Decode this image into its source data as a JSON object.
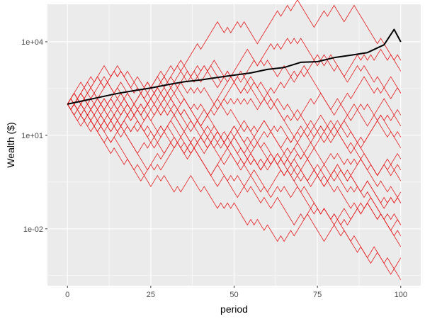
{
  "chart_data": {
    "type": "line",
    "title": "",
    "xlabel": "period",
    "ylabel": "Wealth ($)",
    "log_y": true,
    "xlim": [
      -6,
      106
    ],
    "ylim": [
      0.00015,
      160000
    ],
    "x_ticks": [
      0,
      25,
      50,
      75,
      100
    ],
    "x_tick_labels": [
      "0",
      "25",
      "50",
      "75",
      "100"
    ],
    "y_ticks": [
      0.01,
      10,
      10000
    ],
    "y_tick_labels": [
      "1e-02",
      "1e+01",
      "1e+04"
    ],
    "grid": true,
    "legend": "none",
    "colors": {
      "panel": "#ebebeb",
      "grid": "#ffffff",
      "ticks": "#333333",
      "tick_text": "#4d4d4d",
      "paths": "#e41a1c",
      "expected": "#000000"
    },
    "random_paths": {
      "count": 20,
      "start": 100,
      "periods": 100,
      "final_values": [
        2000,
        1000,
        300,
        150,
        60,
        25,
        10,
        4,
        2,
        1,
        0.4,
        0.2,
        0.1,
        0.05,
        0.02,
        0.01,
        0.005,
        0.003,
        0.001,
        0.0003
      ]
    },
    "series": [
      {
        "x": [
          0,
          5,
          10,
          15,
          20,
          25,
          30,
          35,
          40,
          45,
          50,
          55,
          60,
          65,
          70,
          75,
          80,
          85,
          90,
          95,
          98,
          100
        ],
        "values": [
          100,
          130,
          170,
          220,
          270,
          330,
          420,
          520,
          600,
          720,
          850,
          1000,
          1300,
          1500,
          2200,
          2300,
          3100,
          3700,
          4500,
          8000,
          25000,
          10000
        ]
      }
    ]
  }
}
